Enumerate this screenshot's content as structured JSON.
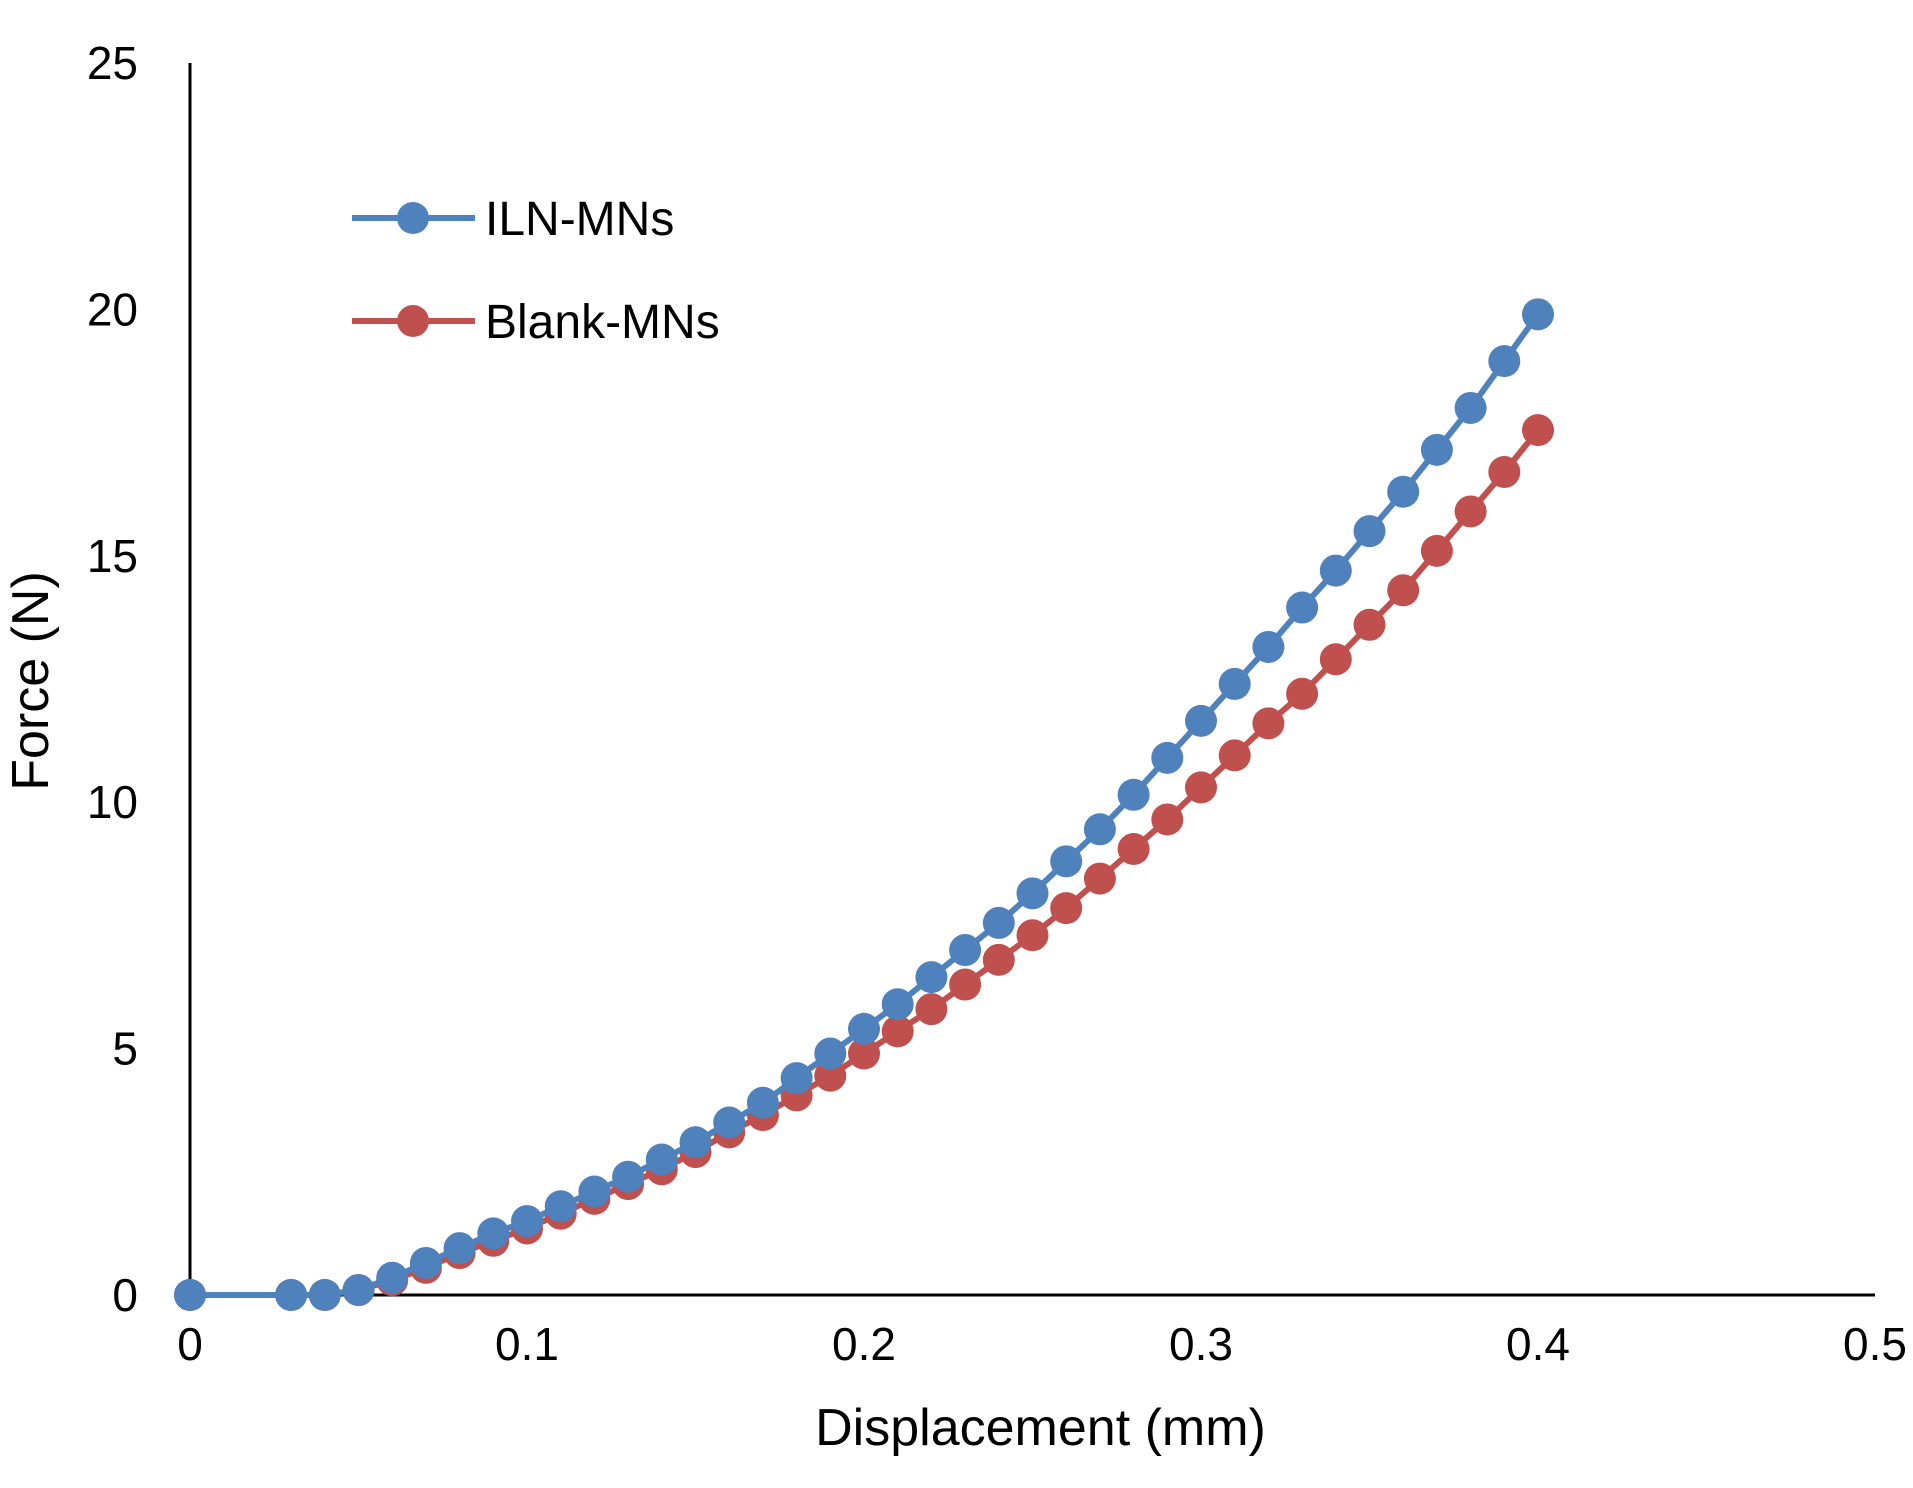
{
  "chart_data": {
    "type": "line",
    "title": "",
    "xlabel": "Displacement (mm)",
    "ylabel": "Force (N)",
    "xlim": [
      0,
      0.5
    ],
    "ylim": [
      0,
      25
    ],
    "xticks": [
      0,
      0.1,
      0.2,
      0.3,
      0.4,
      0.5
    ],
    "xtick_labels": [
      "0",
      "0.1",
      "0.2",
      "0.3",
      "0.4",
      "0.5"
    ],
    "yticks": [
      0,
      5,
      10,
      15,
      20,
      25
    ],
    "ytick_labels": [
      "0",
      "5",
      "10",
      "15",
      "20",
      "25"
    ],
    "grid": false,
    "legend_position": "top-left",
    "series": [
      {
        "name": "ILN-MNs",
        "color": "#4F81BD",
        "x": [
          0,
          0.03,
          0.04,
          0.05,
          0.06,
          0.07,
          0.08,
          0.09,
          0.1,
          0.11,
          0.12,
          0.13,
          0.14,
          0.15,
          0.16,
          0.17,
          0.18,
          0.19,
          0.2,
          0.21,
          0.22,
          0.23,
          0.24,
          0.25,
          0.26,
          0.27,
          0.28,
          0.29,
          0.3,
          0.31,
          0.32,
          0.33,
          0.34,
          0.35,
          0.36,
          0.37,
          0.38,
          0.39,
          0.4
        ],
        "y": [
          0,
          0,
          0,
          0.1,
          0.35,
          0.65,
          0.95,
          1.25,
          1.5,
          1.8,
          2.1,
          2.4,
          2.75,
          3.1,
          3.5,
          3.9,
          4.4,
          4.9,
          5.4,
          5.9,
          6.45,
          7.0,
          7.55,
          8.15,
          8.8,
          9.45,
          10.15,
          10.9,
          11.65,
          12.4,
          13.15,
          13.95,
          14.7,
          15.5,
          16.3,
          17.15,
          18.0,
          18.95,
          19.9
        ]
      },
      {
        "name": "Blank-MNs",
        "color": "#C0504D",
        "x": [
          0,
          0.03,
          0.04,
          0.05,
          0.06,
          0.07,
          0.08,
          0.09,
          0.1,
          0.11,
          0.12,
          0.13,
          0.14,
          0.15,
          0.16,
          0.17,
          0.18,
          0.19,
          0.2,
          0.21,
          0.22,
          0.23,
          0.24,
          0.25,
          0.26,
          0.27,
          0.28,
          0.29,
          0.3,
          0.31,
          0.32,
          0.33,
          0.34,
          0.35,
          0.36,
          0.37,
          0.38,
          0.39,
          0.4
        ],
        "y": [
          0,
          0,
          0,
          0.1,
          0.3,
          0.55,
          0.85,
          1.1,
          1.35,
          1.65,
          1.95,
          2.25,
          2.55,
          2.9,
          3.3,
          3.65,
          4.05,
          4.45,
          4.9,
          5.35,
          5.8,
          6.3,
          6.8,
          7.3,
          7.85,
          8.45,
          9.05,
          9.65,
          10.3,
          10.95,
          11.6,
          12.2,
          12.9,
          13.6,
          14.3,
          15.1,
          15.9,
          16.7,
          17.55
        ]
      }
    ]
  }
}
